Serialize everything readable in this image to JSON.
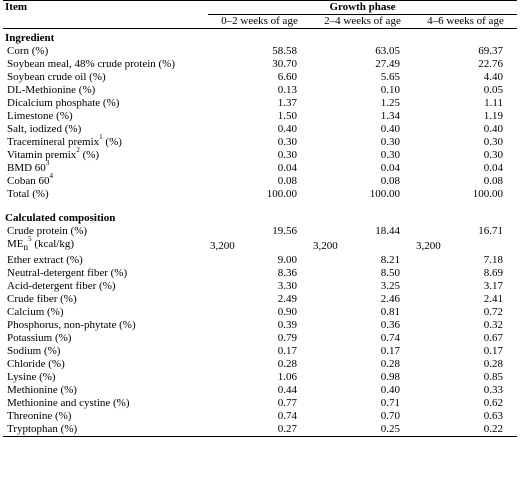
{
  "header": {
    "item": "Item",
    "growth_phase": "Growth phase",
    "phases": [
      "0–2 weeks of age",
      "2–4 weeks of age",
      "4–6 weeks of age"
    ]
  },
  "ingredient_section": {
    "title": "Ingredient",
    "rows": [
      {
        "label": "Corn (%)",
        "sup": "",
        "values": [
          "58.58",
          "63.05",
          "69.37"
        ]
      },
      {
        "label": "Soybean meal, 48% crude protein (%)",
        "sup": "",
        "values": [
          "30.70",
          "27.49",
          "22.76"
        ]
      },
      {
        "label": "Soybean crude oil (%)",
        "sup": "",
        "values": [
          "6.60",
          "5.65",
          "4.40"
        ]
      },
      {
        "label": "DL-Methionine (%)",
        "sup": "",
        "values": [
          "0.13",
          "0.10",
          "0.05"
        ]
      },
      {
        "label": "Dicalcium phosphate (%)",
        "sup": "",
        "values": [
          "1.37",
          "1.25",
          "1.11"
        ]
      },
      {
        "label": "Limestone (%)",
        "sup": "",
        "values": [
          "1.50",
          "1.34",
          "1.19"
        ]
      },
      {
        "label": "Salt, iodized (%)",
        "sup": "",
        "values": [
          "0.40",
          "0.40",
          "0.40"
        ]
      },
      {
        "label": "Tracemineral premix",
        "sup": "1",
        "suffix": " (%)",
        "values": [
          "0.30",
          "0.30",
          "0.30"
        ]
      },
      {
        "label": "Vitamin premix",
        "sup": "2",
        "suffix": " (%)",
        "values": [
          "0.30",
          "0.30",
          "0.30"
        ]
      },
      {
        "label": "BMD 60",
        "sup": "3",
        "suffix": "",
        "values": [
          "0.04",
          "0.04",
          "0.04"
        ]
      },
      {
        "label": "Coban 60",
        "sup": "4",
        "suffix": "",
        "values": [
          "0.08",
          "0.08",
          "0.08"
        ]
      },
      {
        "label": "Total (%)",
        "sup": "",
        "values": [
          "100.00",
          "100.00",
          "100.00"
        ]
      }
    ]
  },
  "composition_section": {
    "title": "Calculated composition",
    "rows": [
      {
        "label": "Crude protein (%)",
        "values": [
          "19.56",
          "18.44",
          "16.71"
        ]
      },
      {
        "label": "ME",
        "sub": "n",
        "sup": "5",
        "suffix": " (kcal/kg)",
        "values": [
          "3,200",
          "3,200",
          "3,200"
        ],
        "align": "left"
      },
      {
        "label": "Ether extract (%)",
        "values": [
          "9.00",
          "8.21",
          "7.18"
        ]
      },
      {
        "label": "Neutral-detergent fiber (%)",
        "values": [
          "8.36",
          "8.50",
          "8.69"
        ]
      },
      {
        "label": "Acid-detergent fiber (%)",
        "values": [
          "3.30",
          "3.25",
          "3.17"
        ]
      },
      {
        "label": "Crude fiber (%)",
        "values": [
          "2.49",
          "2.46",
          "2.41"
        ]
      },
      {
        "label": "Calcium (%)",
        "values": [
          "0.90",
          "0.81",
          "0.72"
        ]
      },
      {
        "label": "Phosphorus, non-phytate (%)",
        "values": [
          "0.39",
          "0.36",
          "0.32"
        ]
      },
      {
        "label": "Potassium (%)",
        "values": [
          "0.79",
          "0.74",
          "0.67"
        ]
      },
      {
        "label": "Sodium (%)",
        "values": [
          "0.17",
          "0.17",
          "0.17"
        ]
      },
      {
        "label": "Chloride (%)",
        "values": [
          "0.28",
          "0.28",
          "0.28"
        ]
      },
      {
        "label": "Lysine (%)",
        "values": [
          "1.06",
          "0.98",
          "0.85"
        ]
      },
      {
        "label": "Methionine (%)",
        "values": [
          "0.44",
          "0.40",
          "0.33"
        ]
      },
      {
        "label": "Methionine and cystine (%)",
        "values": [
          "0.77",
          "0.71",
          "0.62"
        ]
      },
      {
        "label": "Threonine (%)",
        "values": [
          "0.74",
          "0.70",
          "0.63"
        ]
      },
      {
        "label": "Tryptophan (%)",
        "values": [
          "0.27",
          "0.25",
          "0.22"
        ]
      }
    ]
  }
}
